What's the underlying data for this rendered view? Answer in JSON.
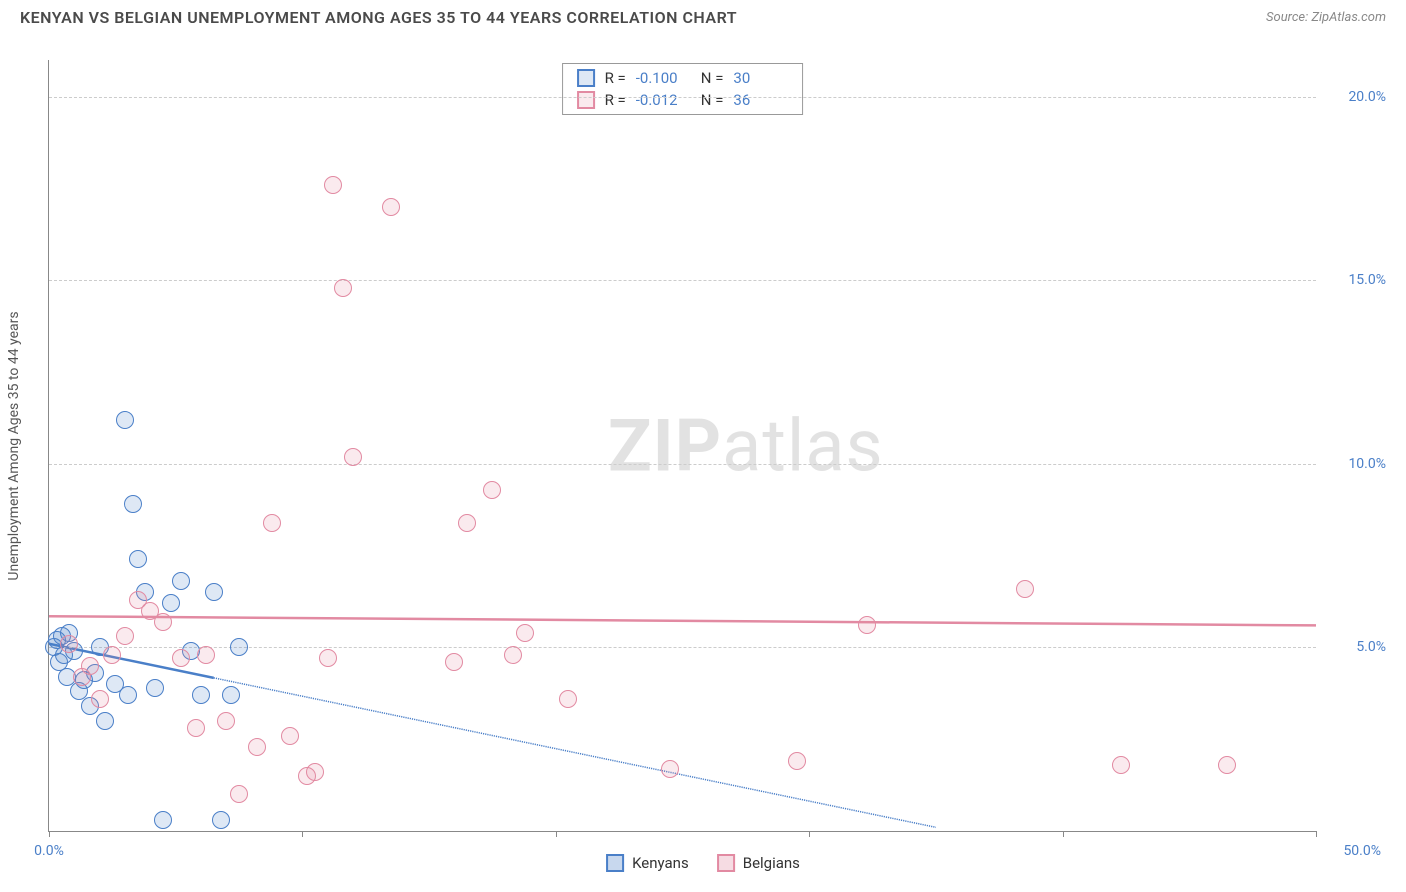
{
  "header": {
    "title": "KENYAN VS BELGIAN UNEMPLOYMENT AMONG AGES 35 TO 44 YEARS CORRELATION CHART",
    "source_prefix": "Source: ",
    "source_name": "ZipAtlas.com"
  },
  "watermark": {
    "zip": "ZIP",
    "atlas": "atlas"
  },
  "chart": {
    "type": "scatter",
    "y_axis_label": "Unemployment Among Ages 35 to 44 years",
    "xlim": [
      0,
      50
    ],
    "ylim": [
      0,
      21
    ],
    "x_ticks": [
      {
        "v": 0,
        "label": "0.0%"
      },
      {
        "v": 10,
        "label": ""
      },
      {
        "v": 20,
        "label": ""
      },
      {
        "v": 30,
        "label": ""
      },
      {
        "v": 40,
        "label": ""
      },
      {
        "v": 50,
        "label": "50.0%"
      }
    ],
    "y_gridlines": [
      {
        "v": 5,
        "label": "5.0%"
      },
      {
        "v": 10,
        "label": "10.0%"
      },
      {
        "v": 15,
        "label": "15.0%"
      },
      {
        "v": 20,
        "label": "20.0%"
      }
    ],
    "grid_color": "#cccccc",
    "background_color": "#ffffff",
    "tick_label_color": "#4a7fc8",
    "axis_color": "#888888",
    "marker_radius": 9,
    "marker_border_width": 1.5,
    "marker_fill_opacity": 0.18,
    "series": [
      {
        "name": "Kenyans",
        "color": "#4a7fc8",
        "fill": "rgba(74,127,200,0.18)",
        "stats": {
          "R": "-0.100",
          "N": "30"
        },
        "trend": {
          "x1": 0,
          "y1": 5.1,
          "x2": 35,
          "y2": 0.1,
          "solid_until_x": 6.5
        },
        "points": [
          [
            0.2,
            5.0
          ],
          [
            0.3,
            5.2
          ],
          [
            0.4,
            4.6
          ],
          [
            0.5,
            5.3
          ],
          [
            0.6,
            4.8
          ],
          [
            0.7,
            4.2
          ],
          [
            0.8,
            5.4
          ],
          [
            1.0,
            4.9
          ],
          [
            1.2,
            3.8
          ],
          [
            1.4,
            4.1
          ],
          [
            1.6,
            3.4
          ],
          [
            1.8,
            4.3
          ],
          [
            2.0,
            5.0
          ],
          [
            2.2,
            3.0
          ],
          [
            2.6,
            4.0
          ],
          [
            3.0,
            11.2
          ],
          [
            3.1,
            3.7
          ],
          [
            3.3,
            8.9
          ],
          [
            3.5,
            7.4
          ],
          [
            3.8,
            6.5
          ],
          [
            4.2,
            3.9
          ],
          [
            4.5,
            0.3
          ],
          [
            4.8,
            6.2
          ],
          [
            5.2,
            6.8
          ],
          [
            5.6,
            4.9
          ],
          [
            6.0,
            3.7
          ],
          [
            6.5,
            6.5
          ],
          [
            6.8,
            0.3
          ],
          [
            7.2,
            3.7
          ],
          [
            7.5,
            5.0
          ]
        ]
      },
      {
        "name": "Belgians",
        "color": "#e28aa2",
        "fill": "rgba(226,138,162,0.18)",
        "stats": {
          "R": "-0.012",
          "N": "36"
        },
        "trend": {
          "x1": 0,
          "y1": 5.85,
          "x2": 50,
          "y2": 5.6,
          "solid_until_x": 50
        },
        "points": [
          [
            0.8,
            5.1
          ],
          [
            1.3,
            4.2
          ],
          [
            1.6,
            4.5
          ],
          [
            2.0,
            3.6
          ],
          [
            2.5,
            4.8
          ],
          [
            3.0,
            5.3
          ],
          [
            3.5,
            6.3
          ],
          [
            4.0,
            6.0
          ],
          [
            4.5,
            5.7
          ],
          [
            5.2,
            4.7
          ],
          [
            5.8,
            2.8
          ],
          [
            6.2,
            4.8
          ],
          [
            7.0,
            3.0
          ],
          [
            7.5,
            1.0
          ],
          [
            8.2,
            2.3
          ],
          [
            8.8,
            8.4
          ],
          [
            9.5,
            2.6
          ],
          [
            10.2,
            1.5
          ],
          [
            10.5,
            1.6
          ],
          [
            11.0,
            4.7
          ],
          [
            11.2,
            17.6
          ],
          [
            11.6,
            14.8
          ],
          [
            12.0,
            10.2
          ],
          [
            13.5,
            17.0
          ],
          [
            16.0,
            4.6
          ],
          [
            16.5,
            8.4
          ],
          [
            17.5,
            9.3
          ],
          [
            18.3,
            4.8
          ],
          [
            18.8,
            5.4
          ],
          [
            20.5,
            3.6
          ],
          [
            24.5,
            1.7
          ],
          [
            29.5,
            1.9
          ],
          [
            32.3,
            5.6
          ],
          [
            38.5,
            6.6
          ],
          [
            42.3,
            1.8
          ],
          [
            46.5,
            1.8
          ]
        ]
      }
    ]
  },
  "stats_legend_labels": {
    "r": "R =",
    "n": "N ="
  },
  "bottom_legend": [
    {
      "label": "Kenyans",
      "color": "#4a7fc8",
      "fill": "rgba(74,127,200,0.3)"
    },
    {
      "label": "Belgians",
      "color": "#e28aa2",
      "fill": "rgba(226,138,162,0.3)"
    }
  ]
}
